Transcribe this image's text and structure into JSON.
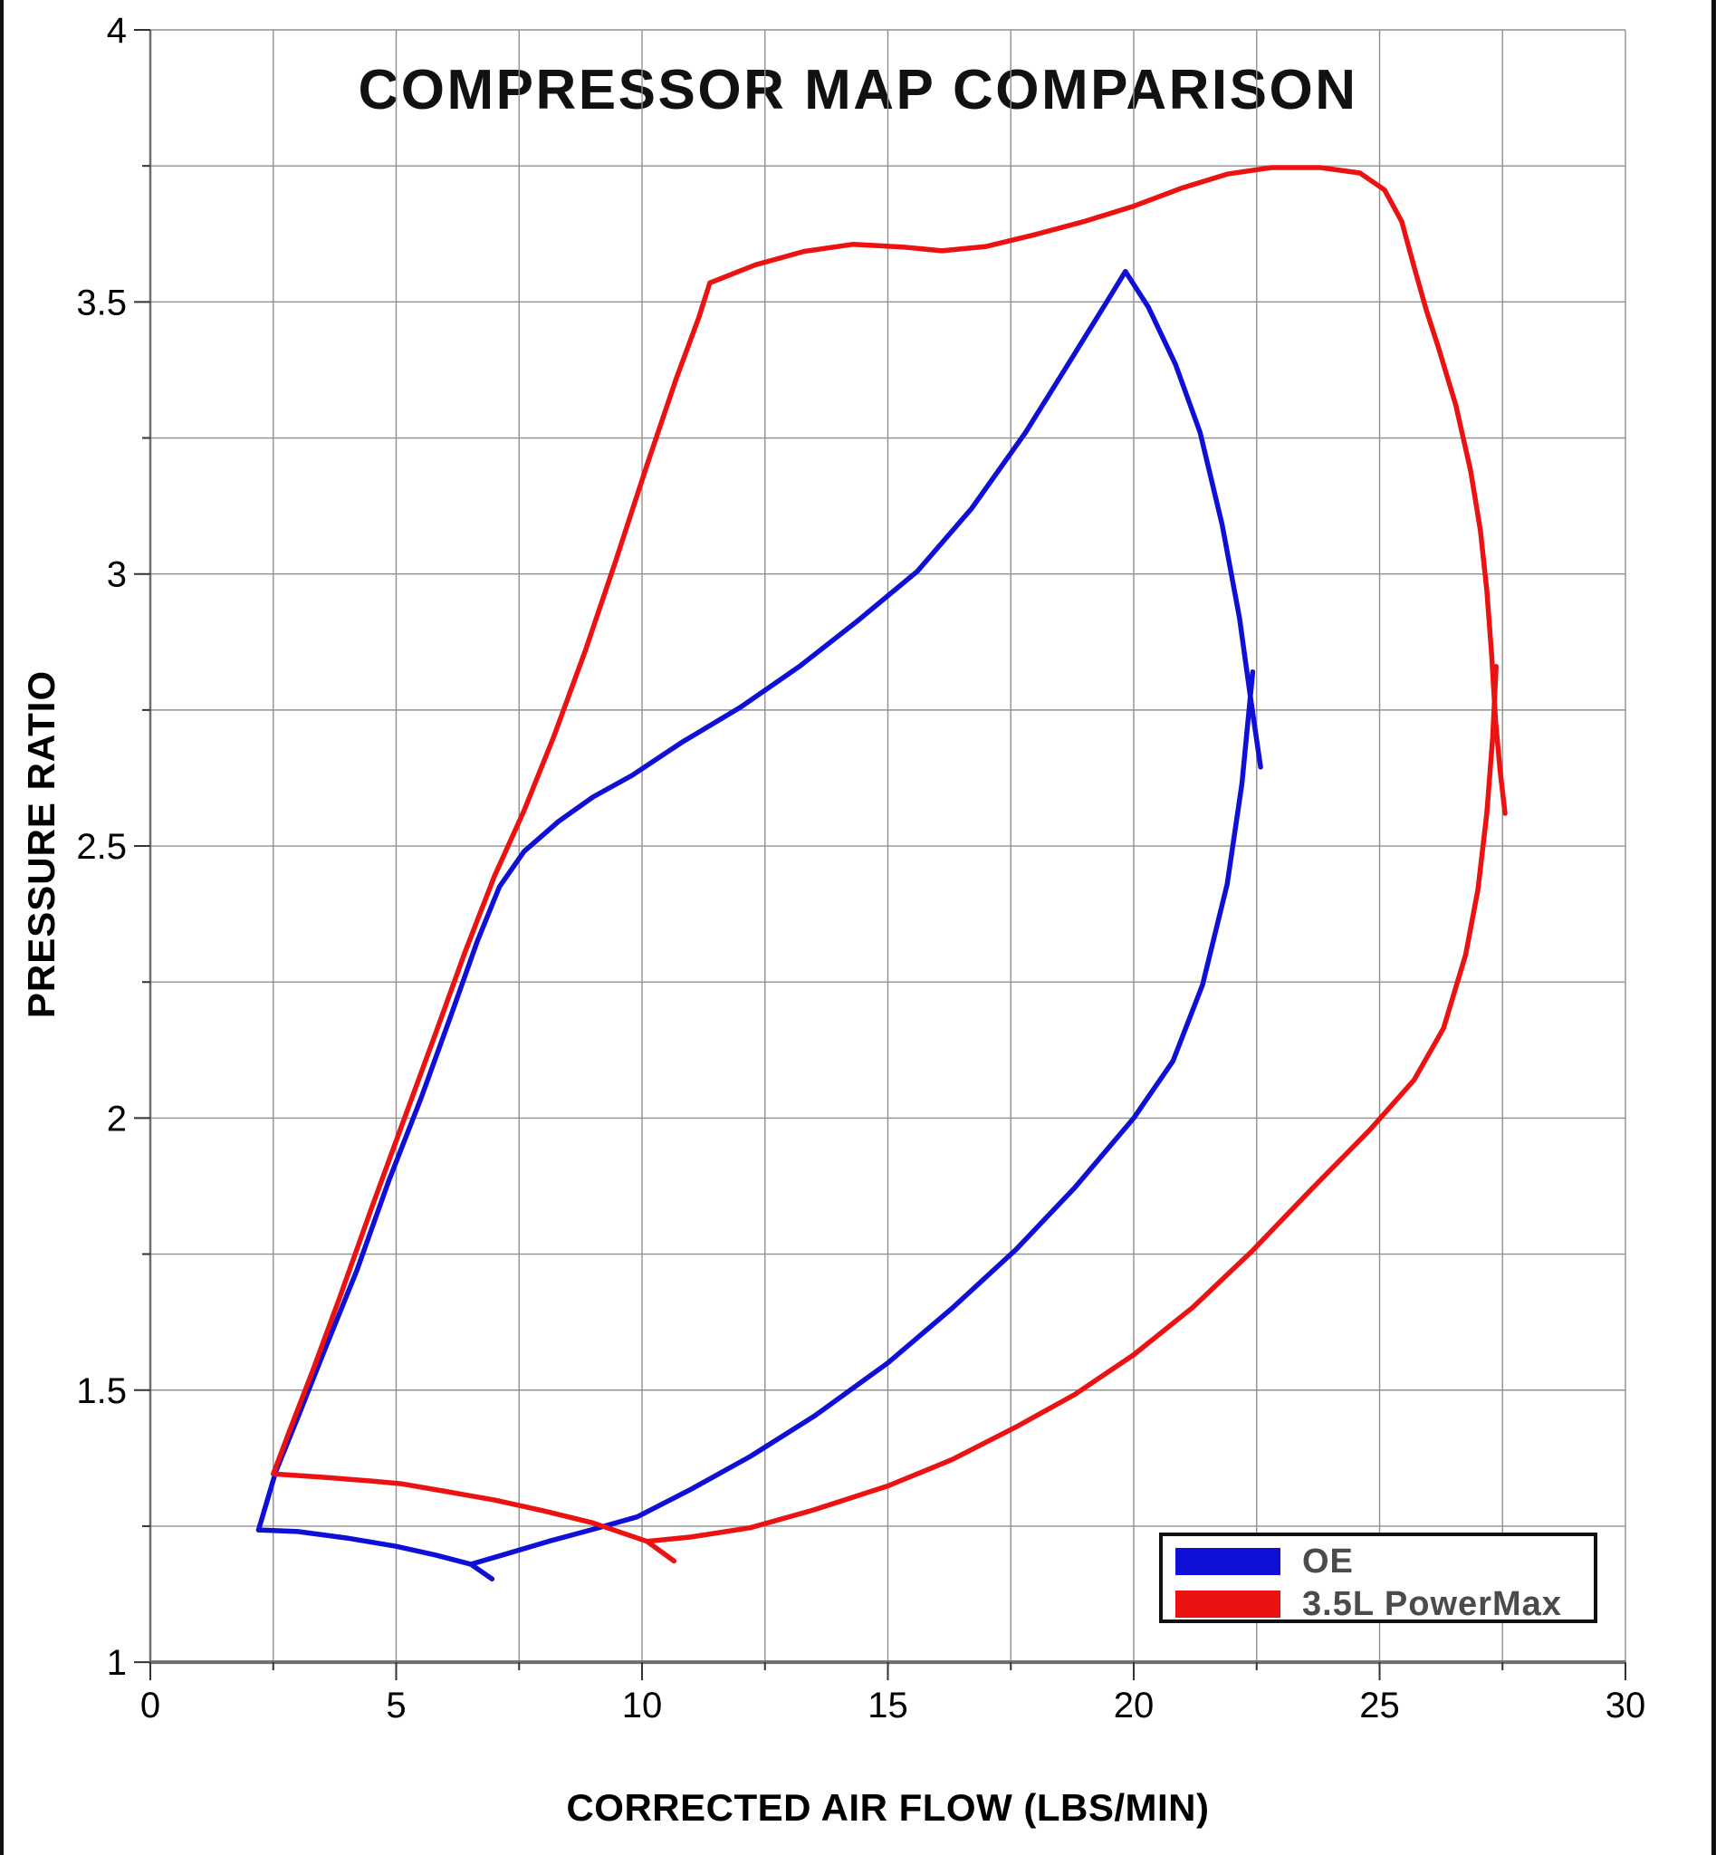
{
  "chart_data": {
    "type": "line",
    "title": "COMPRESSOR MAP COMPARISON",
    "xlabel": "CORRECTED AIR FLOW (LBS/MIN)",
    "ylabel": "PRESSURE RATIO",
    "xlim": [
      0,
      30
    ],
    "ylim": [
      1,
      4
    ],
    "grid": "on",
    "x_grid_step": 2.5,
    "y_grid_step": 0.25,
    "legend_position": "bottom-right",
    "x_ticks": [
      {
        "v": 0,
        "label": "0"
      },
      {
        "v": 5,
        "label": "5"
      },
      {
        "v": 10,
        "label": "10"
      },
      {
        "v": 15,
        "label": "15"
      },
      {
        "v": 20,
        "label": "20"
      },
      {
        "v": 25,
        "label": "25"
      },
      {
        "v": 30,
        "label": "30"
      }
    ],
    "y_ticks": [
      {
        "v": 1,
        "label": "1"
      },
      {
        "v": 1.5,
        "label": "1.5"
      },
      {
        "v": 2,
        "label": "2"
      },
      {
        "v": 2.5,
        "label": "2.5"
      },
      {
        "v": 3,
        "label": "3"
      },
      {
        "v": 3.5,
        "label": "3.5"
      },
      {
        "v": 4,
        "label": "4"
      }
    ],
    "series": [
      {
        "name": "OE",
        "color": "#0f0fd6",
        "description": "blue compressor map envelope",
        "segments": [
          [
            [
              2.2,
              1.243
            ],
            [
              2.55,
              1.35
            ],
            [
              3.0,
              1.45
            ],
            [
              3.55,
              1.575
            ],
            [
              4.2,
              1.72
            ],
            [
              4.85,
              1.885
            ],
            [
              5.5,
              2.035
            ],
            [
              6.1,
              2.185
            ],
            [
              6.65,
              2.325
            ],
            [
              7.1,
              2.425
            ],
            [
              7.6,
              2.49
            ],
            [
              8.3,
              2.545
            ],
            [
              9.0,
              2.59
            ],
            [
              9.8,
              2.63
            ],
            [
              10.8,
              2.69
            ],
            [
              12.0,
              2.755
            ],
            [
              13.2,
              2.83
            ],
            [
              14.4,
              2.915
            ],
            [
              15.6,
              3.005
            ],
            [
              16.7,
              3.12
            ],
            [
              17.8,
              3.26
            ],
            [
              18.8,
              3.405
            ],
            [
              19.45,
              3.5
            ],
            [
              19.83,
              3.556
            ],
            [
              20.3,
              3.49
            ],
            [
              20.85,
              3.385
            ],
            [
              21.35,
              3.26
            ],
            [
              21.8,
              3.09
            ],
            [
              22.15,
              2.92
            ],
            [
              22.38,
              2.77
            ],
            [
              22.58,
              2.645
            ]
          ],
          [
            [
              2.2,
              1.243
            ],
            [
              3.0,
              1.24
            ],
            [
              4.0,
              1.228
            ],
            [
              5.0,
              1.213
            ],
            [
              5.8,
              1.197
            ],
            [
              6.52,
              1.18
            ],
            [
              7.2,
              1.198
            ],
            [
              8.1,
              1.222
            ],
            [
              9.0,
              1.244
            ],
            [
              9.9,
              1.267
            ],
            [
              11.0,
              1.318
            ],
            [
              12.2,
              1.378
            ],
            [
              13.5,
              1.452
            ],
            [
              15.0,
              1.55
            ],
            [
              16.3,
              1.65
            ],
            [
              17.6,
              1.758
            ],
            [
              18.8,
              1.872
            ],
            [
              20.0,
              2.0
            ],
            [
              20.8,
              2.105
            ],
            [
              21.4,
              2.245
            ],
            [
              21.9,
              2.43
            ],
            [
              22.2,
              2.615
            ],
            [
              22.42,
              2.82
            ]
          ],
          [
            [
              6.52,
              1.18
            ],
            [
              6.95,
              1.153
            ]
          ]
        ]
      },
      {
        "name": "3.5L PowerMax",
        "color": "#ec1212",
        "description": "red compressor map envelope",
        "segments": [
          [
            [
              2.5,
              1.346
            ],
            [
              2.85,
              1.43
            ],
            [
              3.3,
              1.535
            ],
            [
              3.85,
              1.67
            ],
            [
              4.5,
              1.835
            ],
            [
              5.15,
              1.995
            ],
            [
              5.8,
              2.155
            ],
            [
              6.4,
              2.305
            ],
            [
              7.0,
              2.445
            ],
            [
              7.6,
              2.565
            ],
            [
              8.2,
              2.7
            ],
            [
              8.85,
              2.86
            ],
            [
              9.45,
              3.02
            ],
            [
              10.1,
              3.2
            ],
            [
              10.7,
              3.36
            ],
            [
              11.15,
              3.47
            ],
            [
              11.38,
              3.535
            ],
            [
              12.3,
              3.568
            ],
            [
              13.3,
              3.593
            ],
            [
              14.3,
              3.606
            ],
            [
              15.3,
              3.601
            ],
            [
              16.1,
              3.594
            ],
            [
              17.0,
              3.602
            ],
            [
              18.0,
              3.624
            ],
            [
              19.0,
              3.648
            ],
            [
              20.0,
              3.676
            ],
            [
              21.0,
              3.71
            ],
            [
              21.9,
              3.735
            ],
            [
              22.8,
              3.747
            ],
            [
              23.8,
              3.747
            ],
            [
              24.6,
              3.737
            ],
            [
              25.1,
              3.706
            ],
            [
              25.45,
              3.648
            ],
            [
              25.7,
              3.565
            ],
            [
              25.95,
              3.485
            ],
            [
              26.2,
              3.415
            ],
            [
              26.55,
              3.31
            ],
            [
              26.85,
              3.19
            ],
            [
              27.05,
              3.08
            ],
            [
              27.18,
              2.97
            ],
            [
              27.28,
              2.85
            ],
            [
              27.36,
              2.73
            ],
            [
              27.45,
              2.64
            ],
            [
              27.55,
              2.56
            ]
          ],
          [
            [
              2.5,
              1.346
            ],
            [
              3.5,
              1.34
            ],
            [
              4.5,
              1.333
            ],
            [
              5.1,
              1.328
            ],
            [
              6.0,
              1.314
            ],
            [
              7.0,
              1.298
            ],
            [
              8.0,
              1.278
            ],
            [
              9.0,
              1.256
            ],
            [
              10.1,
              1.222
            ],
            [
              11.0,
              1.23
            ],
            [
              12.2,
              1.247
            ],
            [
              13.5,
              1.28
            ],
            [
              15.0,
              1.324
            ],
            [
              16.3,
              1.372
            ],
            [
              17.6,
              1.432
            ],
            [
              18.8,
              1.492
            ],
            [
              20.0,
              1.565
            ],
            [
              21.2,
              1.652
            ],
            [
              22.4,
              1.755
            ],
            [
              23.6,
              1.868
            ],
            [
              24.8,
              1.978
            ],
            [
              25.7,
              2.07
            ],
            [
              26.3,
              2.165
            ],
            [
              26.75,
              2.3
            ],
            [
              27.0,
              2.42
            ],
            [
              27.18,
              2.56
            ],
            [
              27.3,
              2.7
            ],
            [
              27.37,
              2.83
            ]
          ],
          [
            [
              10.1,
              1.222
            ],
            [
              10.65,
              1.186
            ]
          ]
        ]
      }
    ],
    "style": {
      "grid_color": "#909090",
      "axis_color": "#6e6e6e",
      "tick_color": "#333333",
      "curve_width": 5.5
    }
  },
  "legend": {
    "items": [
      {
        "label": "OE"
      },
      {
        "label": "3.5L PowerMax"
      }
    ]
  }
}
